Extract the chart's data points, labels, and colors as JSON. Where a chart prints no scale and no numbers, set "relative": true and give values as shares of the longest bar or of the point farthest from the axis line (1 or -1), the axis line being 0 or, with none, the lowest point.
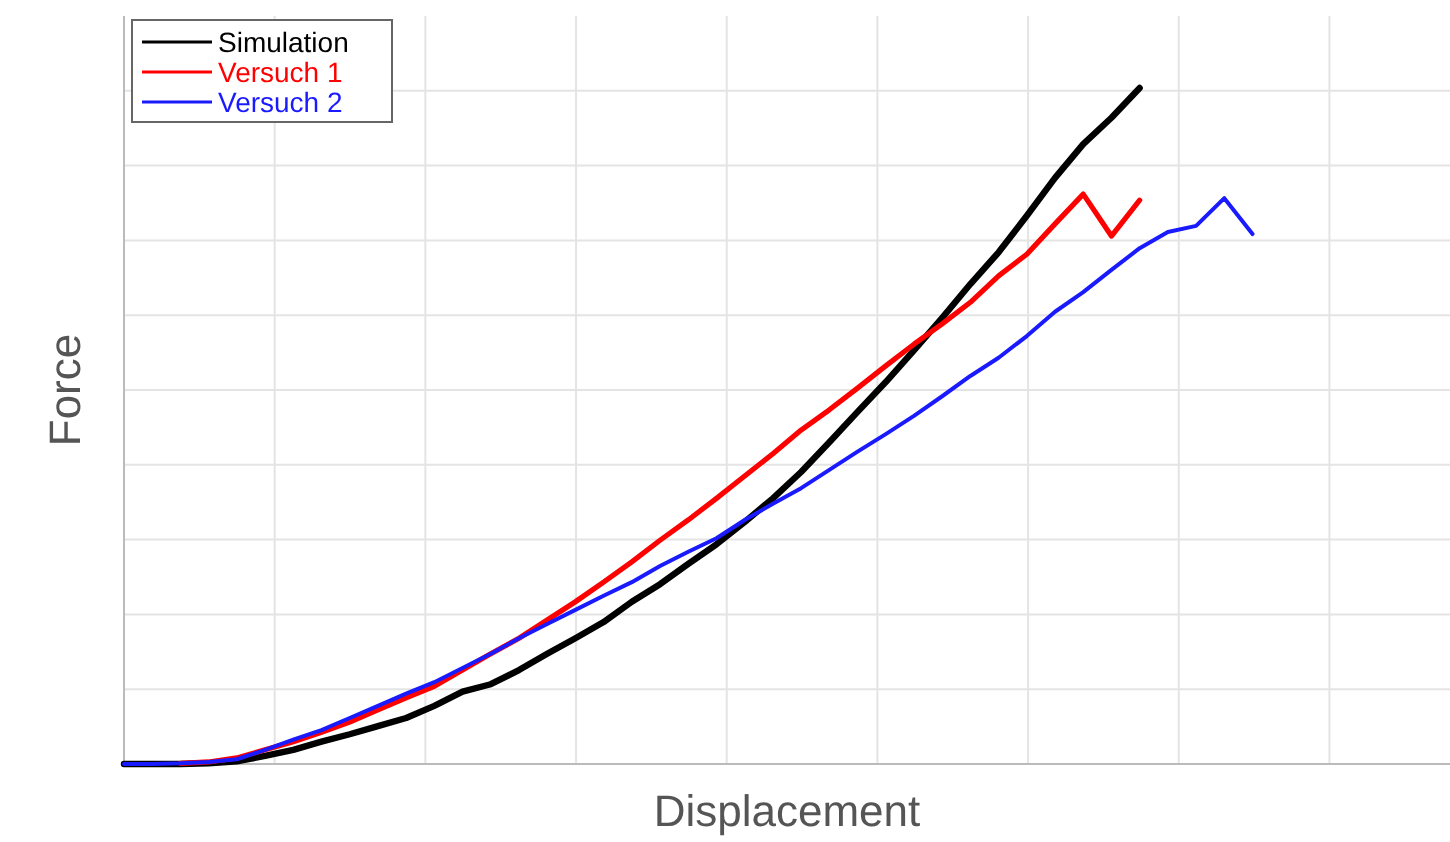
{
  "chart_data": {
    "type": "line",
    "relative": true,
    "xlabel": "Displacement",
    "ylabel": "Force",
    "grid": true,
    "legend": "top left",
    "line_style": "solid",
    "categories": [
      null,
      null,
      null,
      null,
      null,
      null,
      null,
      null,
      null,
      null,
      null,
      null,
      null,
      null,
      null,
      null,
      null,
      null,
      null,
      null,
      null,
      null,
      null,
      null,
      null,
      null,
      null,
      null,
      null,
      null,
      null,
      null,
      null,
      null,
      null,
      null,
      null,
      null,
      null,
      null,
      null,
      null,
      null,
      null,
      null,
      null,
      null,
      null
    ],
    "series": [
      {
        "name": "Simulation",
        "color": "#000000",
        "values": [
          0,
          0,
          0,
          0.001,
          0.004,
          0.012,
          0.021,
          0.033,
          0.044,
          0.056,
          0.068,
          0.086,
          0.107,
          0.118,
          0.139,
          0.163,
          0.186,
          0.21,
          0.24,
          0.266,
          0.296,
          0.325,
          0.358,
          0.393,
          0.432,
          0.476,
          0.521,
          0.565,
          0.612,
          0.66,
          0.71,
          0.757,
          0.811,
          0.867,
          0.917,
          0.956,
          1,
          null,
          null,
          null,
          null,
          null,
          null,
          null,
          null,
          null,
          null,
          null
        ]
      },
      {
        "name": "Versuch 1",
        "color": "#ff0000",
        "values": [
          null,
          null,
          0.001,
          0.003,
          0.009,
          0.021,
          0.033,
          0.047,
          0.062,
          0.08,
          0.098,
          0.115,
          0.139,
          0.163,
          0.186,
          0.213,
          0.24,
          0.269,
          0.299,
          0.331,
          0.361,
          0.393,
          0.426,
          0.459,
          0.494,
          0.524,
          0.556,
          0.589,
          0.621,
          0.651,
          0.683,
          0.722,
          0.754,
          0.799,
          0.843,
          0.781,
          0.834,
          null,
          null,
          null,
          null,
          null,
          null,
          null,
          null,
          null,
          null,
          null
        ]
      },
      {
        "name": "Versuch 2",
        "color": "#1a1aff",
        "values": [
          0,
          0,
          0.001,
          0.003,
          0.007,
          0.021,
          0.036,
          0.05,
          0.068,
          0.086,
          0.104,
          0.121,
          0.142,
          0.163,
          0.186,
          0.207,
          0.228,
          0.249,
          0.269,
          0.293,
          0.314,
          0.334,
          0.361,
          0.385,
          0.408,
          0.435,
          0.462,
          0.488,
          0.515,
          0.544,
          0.574,
          0.601,
          0.633,
          0.669,
          0.698,
          0.731,
          0.763,
          0.787,
          0.796,
          0.837,
          0.784,
          null,
          null,
          null,
          null,
          null,
          null,
          null
        ]
      }
    ]
  }
}
